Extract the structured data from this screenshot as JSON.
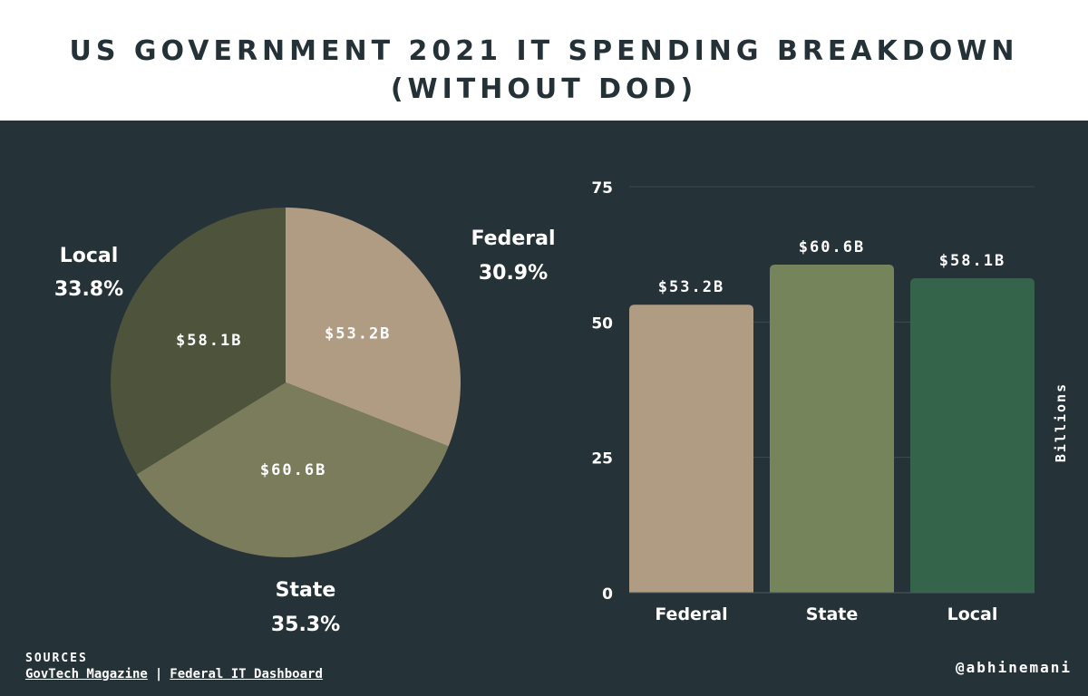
{
  "title_line1": "US GOVERNMENT 2021 IT SPENDING BREAKDOWN",
  "title_line2": "(WITHOUT DOD)",
  "colors": {
    "header_bg": "#ffffff",
    "title": "#243238",
    "panel_bg": "#253238",
    "federal": "#b09c83",
    "state": "#7a7c5c",
    "local": "#4e533b",
    "bar_state": "#76845c",
    "bar_local": "#34654b",
    "text": "#ffffff"
  },
  "chart_data": [
    {
      "type": "pie",
      "slices": [
        {
          "label": "Federal",
          "percent": "30.9%",
          "value_label": "$53.2B",
          "value": 53.2
        },
        {
          "label": "State",
          "percent": "35.3%",
          "value_label": "$60.6B",
          "value": 60.6
        },
        {
          "label": "Local",
          "percent": "33.8%",
          "value_label": "$58.1B",
          "value": 58.1
        }
      ]
    },
    {
      "type": "bar",
      "categories": [
        "Federal",
        "State",
        "Local"
      ],
      "values": [
        53.2,
        60.6,
        58.1
      ],
      "data_labels": [
        "$53.2B",
        "$60.6B",
        "$58.1B"
      ],
      "ylabel": "Billions",
      "ylim": [
        0,
        75
      ],
      "yticks": [
        0,
        25,
        50,
        75
      ],
      "grid": true
    }
  ],
  "sources": {
    "heading": "SOURCES",
    "links": [
      "GovTech Magazine",
      "Federal IT Dashboard"
    ],
    "separator": "|"
  },
  "handle": "@abhinemani"
}
